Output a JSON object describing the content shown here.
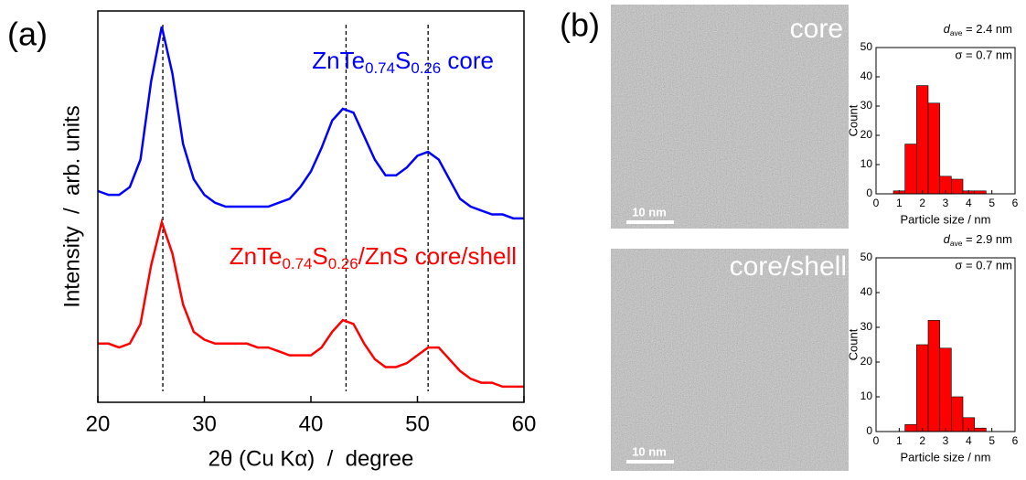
{
  "panel_labels": [
    "(a)",
    "(b)"
  ],
  "images": [
    {
      "label": "core",
      "scale_bar": "10 nm"
    },
    {
      "label": "core/shell",
      "scale_bar": "10 nm"
    }
  ],
  "chart_data": [
    {
      "type": "line",
      "xlabel": "2θ (Cu Kα)  /  degree",
      "ylabel": "Intensity  /  arb. units",
      "x": [
        20,
        21,
        22,
        23,
        24,
        25,
        26,
        27,
        28,
        29,
        30,
        31,
        32,
        33,
        34,
        35,
        36,
        37,
        38,
        39,
        40,
        41,
        42,
        43,
        44,
        45,
        46,
        47,
        48,
        49,
        50,
        51,
        52,
        53,
        54,
        55,
        56,
        57,
        58,
        59,
        60
      ],
      "series": [
        {
          "name": [
            "ZnTe",
            "0.74",
            "S",
            "0.26",
            " core"
          ],
          "color": "#0000ff",
          "values": [
            54,
            53,
            53,
            55,
            62,
            82,
            96,
            84,
            66,
            57,
            53,
            51,
            50,
            50,
            50,
            50,
            50,
            51,
            52,
            55,
            59,
            65,
            72,
            75,
            74,
            68,
            62,
            58,
            58,
            60,
            63,
            64,
            62,
            57,
            52,
            50,
            49,
            48,
            48,
            47,
            47
          ]
        },
        {
          "name": [
            "ZnTe",
            "0.74",
            "S",
            "0.26",
            "/ZnS core/shell"
          ],
          "color": "#ff0000",
          "values": [
            15,
            15,
            14,
            15,
            20,
            35,
            46,
            38,
            25,
            18,
            16,
            15,
            15,
            15,
            15,
            14,
            14,
            13,
            12,
            12,
            12,
            14,
            18,
            21,
            20,
            15,
            11,
            9,
            9,
            10,
            12,
            14,
            14,
            11,
            8,
            6,
            5,
            5,
            4,
            4,
            4
          ]
        }
      ],
      "reference_lines": [
        26.1,
        43.3,
        51
      ],
      "xlim": [
        20,
        60
      ],
      "xticks": [
        20,
        30,
        40,
        50,
        60
      ],
      "ylim": [
        0,
        100
      ]
    },
    {
      "type": "histogram",
      "xlabel": "Particle size / nm",
      "ylabel": "Count",
      "color": "#ff0000",
      "bins": [
        0.75,
        1.25,
        1.75,
        2.25,
        2.75,
        3.25,
        3.75,
        4.25,
        4.75
      ],
      "counts": [
        1,
        17,
        37,
        31,
        6,
        5,
        1,
        1
      ],
      "mean_label": [
        "d",
        "ave",
        " = 2.4 nm"
      ],
      "sd_label": "σ = 0.7 nm",
      "xlim": [
        0,
        6
      ],
      "xticks": [
        0,
        1,
        2,
        3,
        4,
        5,
        6
      ],
      "ylim": [
        0,
        50
      ],
      "yticks": [
        0,
        10,
        20,
        30,
        40,
        50
      ]
    },
    {
      "type": "histogram",
      "xlabel": "Particle size / nm",
      "ylabel": "Count",
      "color": "#ff0000",
      "bins": [
        1.25,
        1.75,
        2.25,
        2.75,
        3.25,
        3.75,
        4.25,
        4.75
      ],
      "counts": [
        2,
        25,
        32,
        24,
        10,
        4,
        1
      ],
      "mean_label": [
        "d",
        "ave",
        " = 2.9 nm"
      ],
      "sd_label": "σ = 0.7 nm",
      "xlim": [
        0,
        6
      ],
      "xticks": [
        0,
        1,
        2,
        3,
        4,
        5,
        6
      ],
      "ylim": [
        0,
        50
      ],
      "yticks": [
        0,
        10,
        20,
        30,
        40,
        50
      ]
    }
  ]
}
